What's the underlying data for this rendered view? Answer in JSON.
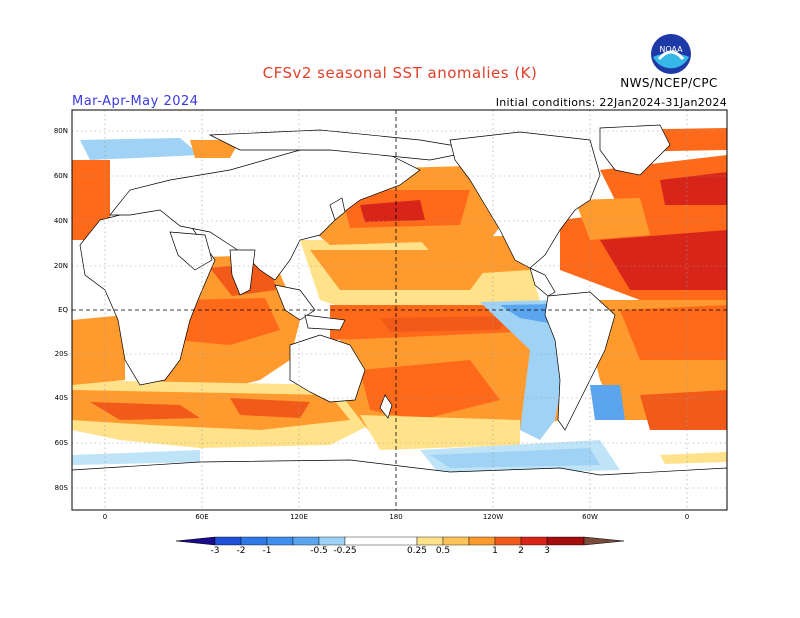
{
  "header": {
    "title": "CFSv2 seasonal SST anomalies (K)",
    "season": "Mar-Apr-May 2024",
    "initial_conditions": "Initial conditions: 22Jan2024-31Jan2024",
    "agency": "NWS/NCEP/CPC",
    "logo_text": "NOAA"
  },
  "map": {
    "lat_labels": [
      "80N",
      "60N",
      "40N",
      "20N",
      "EQ",
      "20S",
      "40S",
      "60S",
      "80S"
    ],
    "lon_labels": [
      "0",
      "60E",
      "120E",
      "180",
      "120W",
      "60W",
      "0"
    ],
    "reference_lines": [
      "equator",
      "dateline"
    ]
  },
  "colorbar": {
    "labels": [
      "-3",
      "-2",
      "-1",
      "-0.5",
      "-0.25",
      "0.25",
      "0.5",
      "1",
      "2",
      "3"
    ],
    "colors": [
      "#1a0a8c",
      "#1f4fd8",
      "#2e78e8",
      "#5aa5ee",
      "#9fd2f4",
      "#ffffff",
      "#ffe28a",
      "#ff9a2e",
      "#f25a1a",
      "#d8251a",
      "#a30d0d",
      "#7a4a3a"
    ]
  },
  "legend_colors": {
    "land": "#ffffff",
    "ocean_default": "#ffffff",
    "strong_warm": "#d8251a",
    "warm": "#ff6a1a",
    "moderate_warm": "#ff9a2e",
    "weak_warm": "#ffe28a",
    "weak_cool": "#bfe4f7",
    "cool": "#5aa5ee"
  }
}
